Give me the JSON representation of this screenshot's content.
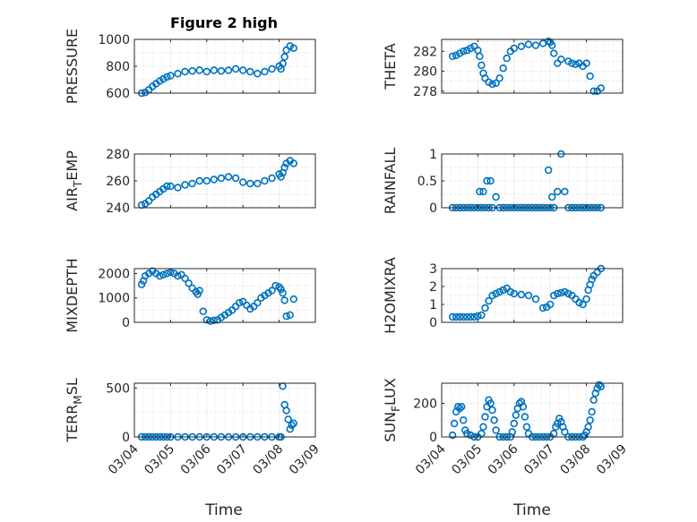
{
  "chart_data": {
    "title": "Figure 2 high",
    "xlabel": "Time",
    "x_ticks": [
      "03/04",
      "03/05",
      "03/06",
      "03/07",
      "03/08",
      "03/09"
    ],
    "marker_color": "#0072BD",
    "axes_color": "#262626",
    "grid": "dotted major and minor",
    "subplots": [
      {
        "type": "scatter",
        "ylabel": "PRESSURE",
        "ylim": [
          600,
          1000
        ],
        "yticks": [
          "600",
          "800",
          "1000"
        ],
        "x": [
          4.2,
          4.3,
          4.4,
          4.5,
          4.6,
          4.7,
          4.8,
          4.9,
          5.0,
          5.2,
          5.4,
          5.6,
          5.8,
          6.0,
          6.2,
          6.4,
          6.6,
          6.8,
          7.0,
          7.2,
          7.4,
          7.6,
          7.8,
          8.0,
          8.05,
          8.1,
          8.15,
          8.2,
          8.3,
          8.4
        ],
        "y": [
          600,
          605,
          625,
          650,
          670,
          690,
          705,
          720,
          730,
          745,
          760,
          765,
          770,
          760,
          770,
          765,
          770,
          780,
          770,
          760,
          745,
          760,
          780,
          800,
          780,
          820,
          870,
          920,
          950,
          935
        ]
      },
      {
        "type": "scatter",
        "ylabel": "THETA",
        "ylim": [
          277.8,
          283.2
        ],
        "yticks": [
          "278",
          "280",
          "282"
        ],
        "x": [
          4.3,
          4.4,
          4.5,
          4.6,
          4.7,
          4.8,
          4.9,
          5.0,
          5.05,
          5.1,
          5.15,
          5.2,
          5.3,
          5.4,
          5.5,
          5.6,
          5.7,
          5.8,
          5.9,
          6.0,
          6.2,
          6.4,
          6.6,
          6.8,
          6.95,
          7.0,
          7.05,
          7.1,
          7.2,
          7.3,
          7.5,
          7.6,
          7.7,
          7.8,
          7.9,
          8.0,
          8.1,
          8.2,
          8.3,
          8.4
        ],
        "y": [
          281.5,
          281.6,
          281.8,
          282.0,
          282.1,
          282.3,
          282.5,
          282.1,
          281.5,
          280.6,
          279.8,
          279.3,
          278.9,
          278.7,
          278.8,
          279.3,
          280.3,
          281.3,
          282.0,
          282.3,
          282.5,
          282.7,
          282.6,
          282.8,
          283.0,
          282.9,
          282.6,
          281.8,
          280.8,
          281.2,
          281.0,
          280.8,
          280.7,
          280.8,
          280.5,
          280.8,
          279.5,
          278.0,
          278.0,
          278.3
        ]
      },
      {
        "type": "scatter",
        "ylabel_main": "AIR",
        "ylabel_sub": "T",
        "ylabel_rest": "EMP",
        "ylim": [
          240,
          280
        ],
        "yticks": [
          "240",
          "260",
          "280"
        ],
        "x": [
          4.2,
          4.3,
          4.4,
          4.5,
          4.6,
          4.7,
          4.8,
          4.9,
          5.0,
          5.2,
          5.4,
          5.6,
          5.8,
          6.0,
          6.2,
          6.4,
          6.6,
          6.8,
          7.0,
          7.2,
          7.4,
          7.6,
          7.8,
          8.0,
          8.05,
          8.1,
          8.15,
          8.2,
          8.3,
          8.4
        ],
        "y": [
          242,
          243,
          245,
          248,
          250,
          252,
          254,
          256,
          256,
          255,
          257,
          258,
          260,
          260,
          261,
          262,
          263,
          262,
          259,
          258,
          258,
          260,
          262,
          265,
          263,
          266,
          270,
          273,
          275,
          273
        ]
      },
      {
        "type": "scatter",
        "ylabel": "RAINFALL",
        "ylim": [
          0,
          1
        ],
        "yticks": [
          "0",
          "0.5",
          "1"
        ],
        "x": [
          4.3,
          4.4,
          4.5,
          4.6,
          4.7,
          4.8,
          4.9,
          5.0,
          5.05,
          5.1,
          5.15,
          5.2,
          5.25,
          5.3,
          5.35,
          5.4,
          5.5,
          5.6,
          5.7,
          5.8,
          5.9,
          6.0,
          6.1,
          6.2,
          6.3,
          6.4,
          6.5,
          6.6,
          6.7,
          6.8,
          6.9,
          6.95,
          7.0,
          7.05,
          7.1,
          7.2,
          7.3,
          7.4,
          7.5,
          7.6,
          7.7,
          7.8,
          7.9,
          8.0,
          8.1,
          8.2,
          8.3,
          8.4
        ],
        "y": [
          0,
          0,
          0,
          0,
          0,
          0,
          0,
          0,
          0.3,
          0,
          0.3,
          0,
          0.5,
          0,
          0.5,
          0,
          0.2,
          0,
          0,
          0,
          0,
          0,
          0,
          0,
          0,
          0,
          0,
          0,
          0,
          0,
          0,
          0.7,
          0,
          0.2,
          0,
          0.3,
          1.0,
          0.3,
          0,
          0,
          0,
          0,
          0,
          0,
          0,
          0,
          0,
          0
        ]
      },
      {
        "type": "scatter",
        "ylabel": "MIXDEPTH",
        "ylim": [
          0,
          2200
        ],
        "yticks": [
          "0",
          "1000",
          "2000"
        ],
        "x": [
          4.2,
          4.25,
          4.3,
          4.4,
          4.5,
          4.6,
          4.7,
          4.8,
          4.9,
          5.0,
          5.1,
          5.2,
          5.3,
          5.4,
          5.5,
          5.6,
          5.7,
          5.75,
          5.8,
          5.9,
          6.0,
          6.1,
          6.2,
          6.3,
          6.4,
          6.5,
          6.6,
          6.7,
          6.8,
          6.9,
          7.0,
          7.1,
          7.2,
          7.3,
          7.4,
          7.5,
          7.6,
          7.7,
          7.8,
          7.9,
          8.0,
          8.05,
          8.1,
          8.15,
          8.2,
          8.3,
          8.4
        ],
        "y": [
          1550,
          1700,
          1900,
          2000,
          2100,
          2000,
          1900,
          1950,
          2000,
          2050,
          2000,
          1900,
          1950,
          1800,
          1600,
          1400,
          1250,
          1150,
          1300,
          450,
          100,
          50,
          80,
          100,
          200,
          300,
          400,
          500,
          650,
          800,
          850,
          700,
          550,
          650,
          800,
          1000,
          1100,
          1200,
          1300,
          1500,
          1450,
          1350,
          1200,
          900,
          250,
          300,
          950
        ]
      },
      {
        "type": "scatter",
        "ylabel": "H2OMIXRA",
        "ylim": [
          0,
          3
        ],
        "yticks": [
          "0",
          "1",
          "2",
          "3"
        ],
        "x": [
          4.3,
          4.4,
          4.5,
          4.6,
          4.7,
          4.8,
          4.9,
          5.0,
          5.1,
          5.2,
          5.3,
          5.4,
          5.5,
          5.6,
          5.7,
          5.8,
          5.9,
          6.0,
          6.2,
          6.4,
          6.6,
          6.8,
          6.9,
          7.0,
          7.1,
          7.2,
          7.3,
          7.4,
          7.5,
          7.6,
          7.7,
          7.8,
          7.9,
          8.0,
          8.05,
          8.1,
          8.15,
          8.2,
          8.3,
          8.4
        ],
        "y": [
          0.3,
          0.3,
          0.3,
          0.3,
          0.3,
          0.3,
          0.3,
          0.35,
          0.4,
          0.8,
          1.2,
          1.5,
          1.6,
          1.7,
          1.8,
          1.9,
          1.7,
          1.6,
          1.55,
          1.5,
          1.3,
          0.8,
          0.85,
          1.0,
          1.5,
          1.6,
          1.65,
          1.7,
          1.6,
          1.5,
          1.3,
          1.1,
          1.0,
          1.3,
          1.8,
          2.1,
          2.4,
          2.6,
          2.8,
          3.0
        ]
      },
      {
        "type": "scatter",
        "ylabel_main": "TERR",
        "ylabel_sub": "M",
        "ylabel_rest": "SL",
        "ylim": [
          0,
          550
        ],
        "yticks": [
          "0",
          "500"
        ],
        "x": [
          4.2,
          4.3,
          4.4,
          4.5,
          4.6,
          4.7,
          4.8,
          4.9,
          5.0,
          5.2,
          5.4,
          5.6,
          5.8,
          6.0,
          6.2,
          6.4,
          6.6,
          6.8,
          7.0,
          7.2,
          7.4,
          7.6,
          7.8,
          8.0,
          8.05,
          8.1,
          8.15,
          8.2,
          8.25,
          8.3,
          8.35,
          8.4
        ],
        "y": [
          0,
          0,
          0,
          0,
          0,
          0,
          0,
          0,
          0,
          0,
          0,
          0,
          0,
          0,
          0,
          0,
          0,
          0,
          0,
          0,
          0,
          0,
          0,
          0,
          0,
          520,
          330,
          270,
          180,
          80,
          120,
          140
        ]
      },
      {
        "type": "scatter",
        "ylabel_main": "SUN",
        "ylabel_sub": "F",
        "ylabel_rest": "LUX",
        "ylim": [
          0,
          320
        ],
        "yticks": [
          "0",
          "200"
        ],
        "x": [
          4.3,
          4.35,
          4.4,
          4.45,
          4.5,
          4.55,
          4.6,
          4.65,
          4.7,
          4.8,
          4.9,
          5.0,
          5.1,
          5.15,
          5.2,
          5.25,
          5.3,
          5.35,
          5.4,
          5.45,
          5.5,
          5.6,
          5.7,
          5.8,
          5.9,
          5.95,
          6.0,
          6.05,
          6.1,
          6.15,
          6.2,
          6.25,
          6.3,
          6.35,
          6.4,
          6.5,
          6.6,
          6.7,
          6.8,
          6.9,
          7.0,
          7.1,
          7.15,
          7.2,
          7.25,
          7.3,
          7.35,
          7.4,
          7.5,
          7.6,
          7.7,
          7.8,
          7.9,
          7.95,
          8.0,
          8.05,
          8.1,
          8.15,
          8.2,
          8.25,
          8.3,
          8.35,
          8.4
        ],
        "y": [
          10,
          80,
          150,
          180,
          170,
          180,
          100,
          40,
          20,
          10,
          0,
          0,
          20,
          60,
          120,
          180,
          220,
          200,
          160,
          100,
          40,
          0,
          0,
          0,
          0,
          30,
          80,
          130,
          170,
          200,
          210,
          180,
          120,
          60,
          20,
          0,
          0,
          0,
          0,
          0,
          0,
          20,
          60,
          80,
          110,
          90,
          60,
          30,
          0,
          0,
          0,
          0,
          0,
          10,
          30,
          60,
          100,
          150,
          220,
          260,
          290,
          310,
          300
        ]
      }
    ]
  }
}
